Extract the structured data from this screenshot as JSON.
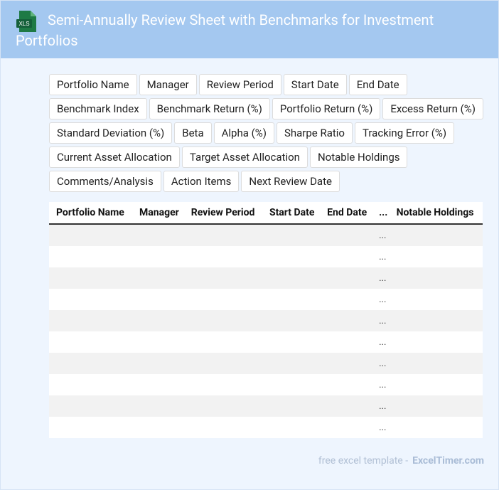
{
  "header": {
    "title": "Semi-Annually Review Sheet with Benchmarks for Investment Portfolios",
    "icon_label": "XLS"
  },
  "fields": [
    "Portfolio Name",
    "Manager",
    "Review Period",
    "Start Date",
    "End Date",
    "Benchmark Index",
    "Benchmark Return (%)",
    "Portfolio Return (%)",
    "Excess Return (%)",
    "Standard Deviation (%)",
    "Beta",
    "Alpha (%)",
    "Sharpe Ratio",
    "Tracking Error (%)",
    "Current Asset Allocation",
    "Target Asset Allocation",
    "Notable Holdings",
    "Comments/Analysis",
    "Action Items",
    "Next Review Date"
  ],
  "table": {
    "columns": [
      "Portfolio Name",
      "Manager",
      "Review Period",
      "Start Date",
      "End Date",
      "...",
      "Notable Holdings"
    ],
    "rows": [
      "...",
      "...",
      "...",
      "...",
      "...",
      "...",
      "...",
      "...",
      "...",
      "..."
    ]
  },
  "footer": {
    "text": "free excel template -",
    "brand": "ExcelTimer.com"
  }
}
